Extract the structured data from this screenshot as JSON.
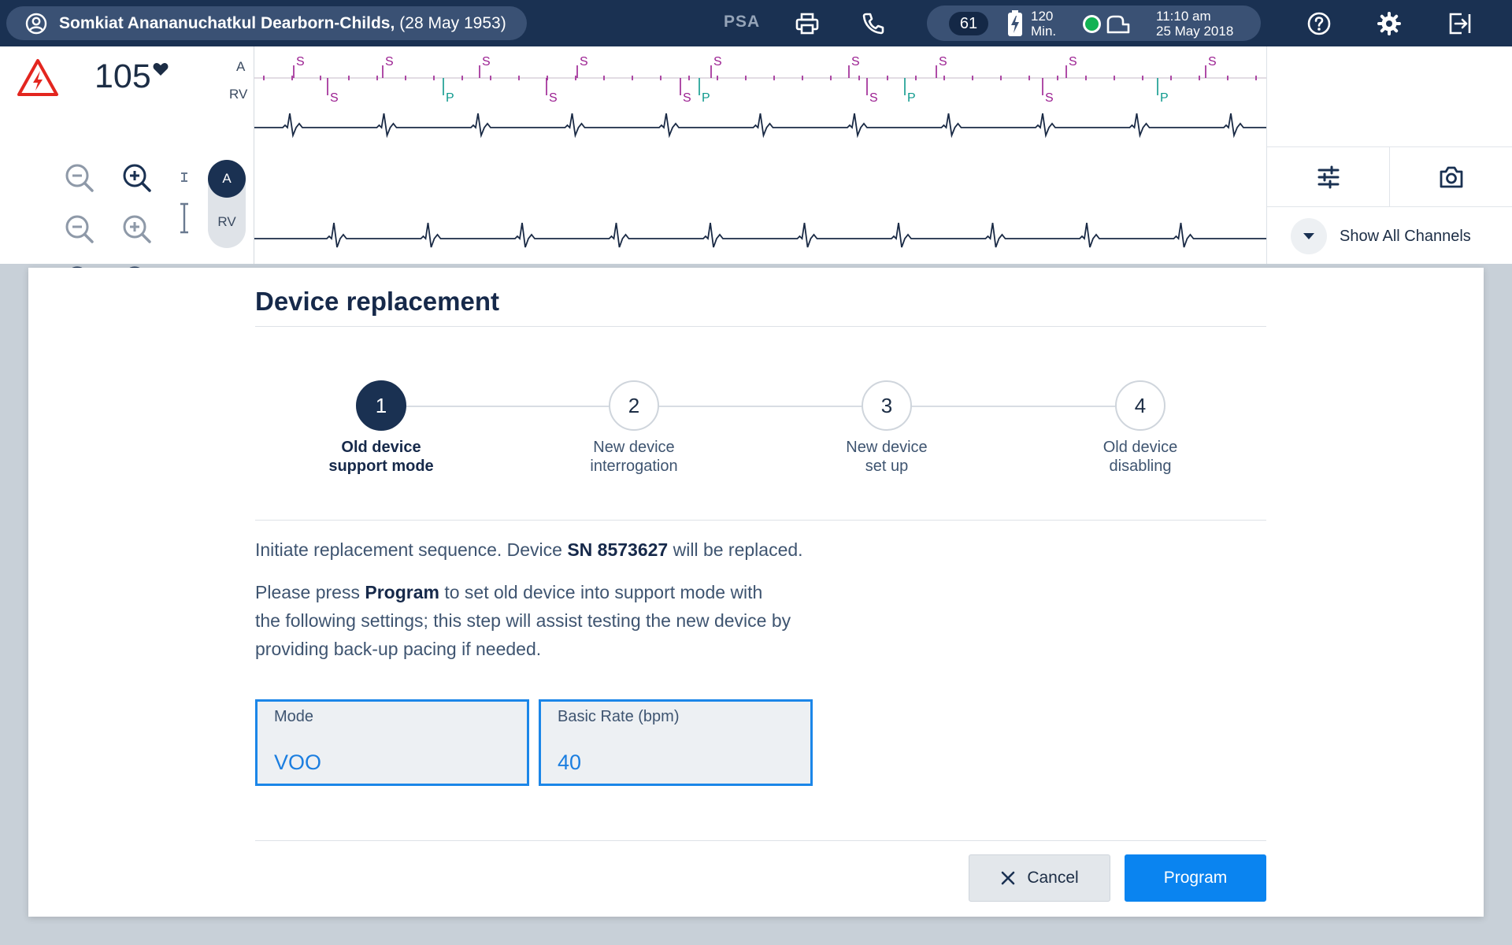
{
  "topbar": {
    "patient_name": "Somkiat Anananuchatkul Dearborn-Childs,",
    "patient_dob": "(28 May 1953)",
    "psa_label": "PSA",
    "count_badge": "61",
    "battery_value": "120",
    "battery_unit": "Min.",
    "time": "11:10 am",
    "date": "25 May 2018",
    "icons": [
      "user-icon",
      "printer-icon",
      "phone-icon",
      "battery-icon",
      "wand-icon",
      "help-icon",
      "settings-icon",
      "logout-icon"
    ],
    "colors": {
      "bar": "#1a3152",
      "pill": "#3a5174",
      "status_green": "#12b253"
    }
  },
  "ecg": {
    "heart_rate": "105",
    "channel_labels": {
      "a": "A",
      "rv": "RV",
      "lead": "I"
    },
    "toggle": {
      "a": "A",
      "rv": "RV"
    },
    "marker_labels": {
      "sense": "S",
      "pace": "P"
    },
    "marker_colors": {
      "sense": "#9b1f91",
      "pace": "#0f9a8e"
    },
    "trace_color": "#1a2a45",
    "show_all_channels": "Show All Channels"
  },
  "dialog": {
    "title": "Device replacement",
    "steps": [
      {
        "number": "1",
        "line1": "Old device",
        "line2": "support mode",
        "active": true
      },
      {
        "number": "2",
        "line1": "New device",
        "line2": "interrogation",
        "active": false
      },
      {
        "number": "3",
        "line1": "New device",
        "line2": "set up",
        "active": false
      },
      {
        "number": "4",
        "line1": "Old device",
        "line2": "disabling",
        "active": false
      }
    ],
    "intro_before": "Initiate replacement sequence. Device ",
    "serial": "SN 8573627",
    "intro_after": " will be replaced.",
    "instr_before": "Please press ",
    "instr_bold": "Program",
    "instr_line1_after": " to set old device into support mode with",
    "instr_line2": "the following settings; this step will assist testing the new device by",
    "instr_line3": "providing back-up pacing if needed.",
    "fields": [
      {
        "label": "Mode",
        "value": "VOO"
      },
      {
        "label": "Basic Rate (bpm)",
        "value": "40"
      }
    ],
    "cancel_label": "Cancel",
    "program_label": "Program",
    "colors": {
      "accent": "#0a84f0",
      "field_border": "#1b86e8",
      "value": "#1b7ee0"
    }
  }
}
